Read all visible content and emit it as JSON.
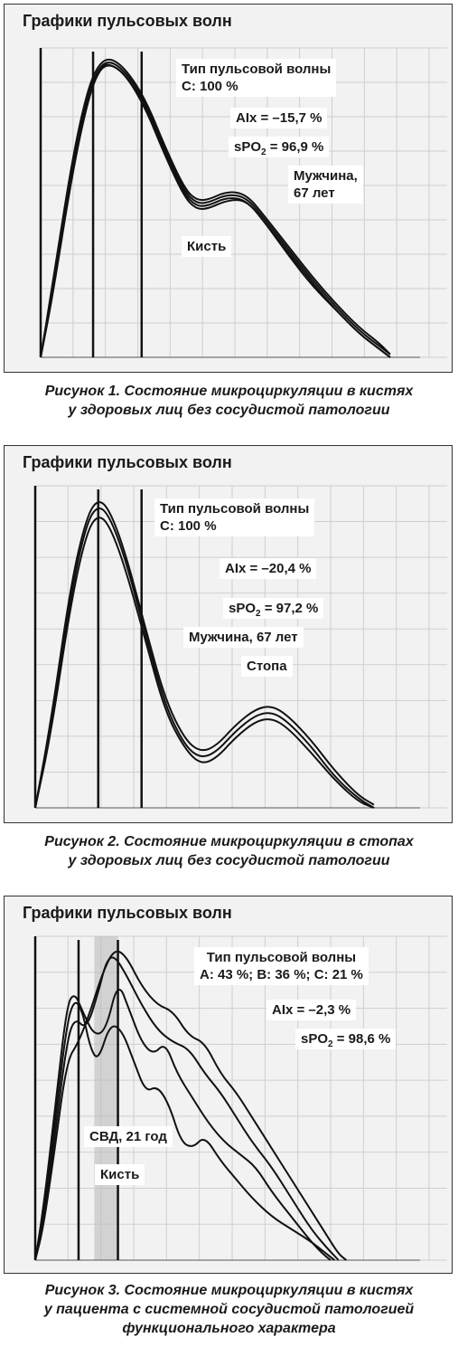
{
  "chart_data": [
    {
      "type": "line",
      "title": "Графики пульсовых волн",
      "labels": {
        "wave_type": "Тип пульсовой волны",
        "wave_type_value": "С: 100 %",
        "aix": "AIx = –15,7 %",
        "spo2_prefix": "sPO",
        "spo2_sub": "2",
        "spo2_value": " = 96,9 %",
        "subject_line1": "Мужчина,",
        "subject_line2": "67 лет",
        "site": "Кисть"
      },
      "grid": true,
      "series": [
        {
          "values": [
            [
              0,
              0
            ],
            [
              3,
              22
            ],
            [
              8,
              64
            ],
            [
              12,
              88
            ],
            [
              15,
              98
            ],
            [
              18,
              100
            ],
            [
              22,
              96
            ],
            [
              27,
              86
            ],
            [
              32,
              70
            ],
            [
              37,
              56
            ],
            [
              40,
              52
            ],
            [
              43,
              52
            ],
            [
              48,
              55
            ],
            [
              53,
              54
            ],
            [
              58,
              46
            ],
            [
              64,
              36
            ],
            [
              70,
              26
            ],
            [
              76,
              17
            ],
            [
              82,
              9
            ],
            [
              87,
              4
            ],
            [
              90,
              1
            ]
          ]
        },
        {
          "values": [
            [
              0,
              0
            ],
            [
              3,
              20
            ],
            [
              8,
              61
            ],
            [
              12,
              86
            ],
            [
              15,
              97
            ],
            [
              18,
              99
            ],
            [
              22,
              95
            ],
            [
              27,
              85
            ],
            [
              32,
              69
            ],
            [
              37,
              55
            ],
            [
              40,
              51
            ],
            [
              43,
              51
            ],
            [
              48,
              54
            ],
            [
              53,
              53
            ],
            [
              58,
              45
            ],
            [
              64,
              35
            ],
            [
              70,
              25
            ],
            [
              76,
              16
            ],
            [
              82,
              8
            ],
            [
              87,
              3
            ],
            [
              90,
              0
            ]
          ]
        },
        {
          "values": [
            [
              0,
              0
            ],
            [
              3,
              24
            ],
            [
              8,
              66
            ],
            [
              12,
              90
            ],
            [
              15,
              99
            ],
            [
              18,
              101
            ],
            [
              22,
              97
            ],
            [
              27,
              87
            ],
            [
              32,
              71
            ],
            [
              37,
              57
            ],
            [
              40,
              53
            ],
            [
              43,
              53
            ],
            [
              48,
              56
            ],
            [
              53,
              55
            ],
            [
              58,
              47
            ],
            [
              64,
              37
            ],
            [
              70,
              27
            ],
            [
              76,
              18
            ],
            [
              82,
              10
            ],
            [
              87,
              5
            ],
            [
              90,
              1
            ]
          ]
        },
        {
          "values": [
            [
              0,
              0
            ],
            [
              3,
              21
            ],
            [
              8,
              63
            ],
            [
              12,
              87
            ],
            [
              15,
              98
            ],
            [
              18,
              99
            ],
            [
              22,
              95
            ],
            [
              27,
              84
            ],
            [
              32,
              68
            ],
            [
              37,
              54
            ],
            [
              40,
              50
            ],
            [
              43,
              50
            ],
            [
              48,
              53
            ],
            [
              53,
              53
            ],
            [
              58,
              45
            ],
            [
              64,
              34
            ],
            [
              70,
              24
            ],
            [
              76,
              16
            ],
            [
              82,
              8
            ],
            [
              87,
              3
            ],
            [
              90,
              0
            ]
          ]
        }
      ],
      "markers_x": [
        13.5,
        26
      ]
    },
    {
      "type": "line",
      "title": "Графики пульсовых волн",
      "labels": {
        "wave_type": "Тип пульсовой волны",
        "wave_type_value": "С: 100 %",
        "aix": "AIx = –20,4 %",
        "spo2_prefix": "sPO",
        "spo2_sub": "2",
        "spo2_value": " = 97,2 %",
        "subject": "Мужчина, 67 лет",
        "site": "Стопа"
      },
      "grid": true,
      "series": [
        {
          "values": [
            [
              0,
              0
            ],
            [
              4,
              28
            ],
            [
              9,
              72
            ],
            [
              13,
              94
            ],
            [
              16,
              100
            ],
            [
              19,
              96
            ],
            [
              23,
              82
            ],
            [
              28,
              58
            ],
            [
              33,
              35
            ],
            [
              38,
              22
            ],
            [
              42,
              18
            ],
            [
              46,
              20
            ],
            [
              51,
              27
            ],
            [
              56,
              32
            ],
            [
              60,
              33
            ],
            [
              64,
              30
            ],
            [
              70,
              22
            ],
            [
              76,
              12
            ],
            [
              82,
              4
            ],
            [
              86,
              1
            ]
          ]
        },
        {
          "values": [
            [
              0,
              0
            ],
            [
              4,
              26
            ],
            [
              9,
              69
            ],
            [
              13,
              92
            ],
            [
              16,
              98
            ],
            [
              19,
              94
            ],
            [
              23,
              80
            ],
            [
              28,
              56
            ],
            [
              33,
              33
            ],
            [
              38,
              20
            ],
            [
              42,
              16
            ],
            [
              46,
              18
            ],
            [
              51,
              25
            ],
            [
              56,
              30
            ],
            [
              60,
              31
            ],
            [
              64,
              28
            ],
            [
              70,
              20
            ],
            [
              76,
              10
            ],
            [
              82,
              3
            ],
            [
              86,
              0
            ]
          ]
        },
        {
          "values": [
            [
              0,
              0
            ],
            [
              4,
              24
            ],
            [
              9,
              66
            ],
            [
              13,
              89
            ],
            [
              16,
              95
            ],
            [
              19,
              91
            ],
            [
              23,
              77
            ],
            [
              28,
              54
            ],
            [
              33,
              31
            ],
            [
              38,
              19
            ],
            [
              42,
              14
            ],
            [
              46,
              16
            ],
            [
              51,
              23
            ],
            [
              56,
              28
            ],
            [
              60,
              29
            ],
            [
              64,
              26
            ],
            [
              70,
              18
            ],
            [
              76,
              9
            ],
            [
              82,
              2
            ],
            [
              86,
              0
            ]
          ]
        }
      ],
      "markers_x": [
        16,
        27
      ]
    },
    {
      "type": "line",
      "title": "Графики пульсовых волн",
      "labels": {
        "wave_type": "Тип пульсовой волны",
        "wave_type_value": "А: 43 %; В: 36 %; С: 21 %",
        "aix": "AIx = –2,3 %",
        "spo2_prefix": "sPO",
        "spo2_sub": "2",
        "spo2_value": " = 98,6 %",
        "subject": "СВД, 21 год",
        "site": "Кисть"
      },
      "grid": true,
      "series": [
        {
          "values": [
            [
              0,
              0
            ],
            [
              2,
              14
            ],
            [
              5,
              44
            ],
            [
              8,
              76
            ],
            [
              10,
              84
            ],
            [
              12,
              80
            ],
            [
              14,
              68
            ],
            [
              16,
              64
            ],
            [
              19,
              76
            ],
            [
              22,
              74
            ],
            [
              25,
              64
            ],
            [
              28,
              54
            ],
            [
              31,
              56
            ],
            [
              34,
              50
            ],
            [
              37,
              38
            ],
            [
              40,
              36
            ],
            [
              43,
              40
            ],
            [
              47,
              32
            ],
            [
              51,
              26
            ],
            [
              55,
              20
            ],
            [
              60,
              14
            ],
            [
              65,
              10
            ],
            [
              70,
              6
            ],
            [
              74,
              2
            ],
            [
              76,
              0
            ]
          ]
        },
        {
          "values": [
            [
              0,
              0
            ],
            [
              2,
              16
            ],
            [
              5,
              48
            ],
            [
              8,
              82
            ],
            [
              10,
              86
            ],
            [
              12,
              80
            ],
            [
              15,
              72
            ],
            [
              18,
              74
            ],
            [
              21,
              90
            ],
            [
              24,
              80
            ],
            [
              27,
              70
            ],
            [
              30,
              66
            ],
            [
              33,
              70
            ],
            [
              36,
              60
            ],
            [
              40,
              52
            ],
            [
              44,
              44
            ],
            [
              48,
              38
            ],
            [
              52,
              34
            ],
            [
              56,
              30
            ],
            [
              60,
              22
            ],
            [
              65,
              14
            ],
            [
              70,
              6
            ],
            [
              73,
              2
            ],
            [
              75,
              0
            ]
          ]
        },
        {
          "values": [
            [
              0,
              0
            ],
            [
              2,
              12
            ],
            [
              5,
              40
            ],
            [
              8,
              70
            ],
            [
              10,
              78
            ],
            [
              13,
              74
            ],
            [
              16,
              86
            ],
            [
              18,
              96
            ],
            [
              20,
              98
            ],
            [
              23,
              92
            ],
            [
              27,
              82
            ],
            [
              31,
              74
            ],
            [
              35,
              70
            ],
            [
              39,
              68
            ],
            [
              43,
              60
            ],
            [
              47,
              54
            ],
            [
              51,
              46
            ],
            [
              55,
              38
            ],
            [
              60,
              30
            ],
            [
              65,
              20
            ],
            [
              70,
              10
            ],
            [
              74,
              4
            ],
            [
              77,
              0
            ]
          ]
        },
        {
          "values": [
            [
              0,
              0
            ],
            [
              2,
              10
            ],
            [
              5,
              36
            ],
            [
              8,
              64
            ],
            [
              11,
              70
            ],
            [
              14,
              80
            ],
            [
              17,
              92
            ],
            [
              20,
              100
            ],
            [
              23,
              98
            ],
            [
              27,
              88
            ],
            [
              31,
              82
            ],
            [
              35,
              80
            ],
            [
              39,
              72
            ],
            [
              43,
              70
            ],
            [
              47,
              60
            ],
            [
              51,
              54
            ],
            [
              55,
              46
            ],
            [
              60,
              36
            ],
            [
              65,
              26
            ],
            [
              70,
              16
            ],
            [
              74,
              8
            ],
            [
              77,
              2
            ],
            [
              79,
              0
            ]
          ]
        }
      ],
      "markers_x": [
        11,
        21
      ],
      "shaded_band_x": [
        15,
        21
      ]
    }
  ],
  "captions": [
    {
      "line1": "Рисунок 1. Состояние микроциркуляции в кистях",
      "line2": "у здоровых лиц без сосудистой патологии"
    },
    {
      "line1": "Рисунок 2. Состояние микроциркуляции в стопах",
      "line2": "у здоровых лиц без сосудистой патологии"
    },
    {
      "line1": "Рисунок 3. Состояние микроциркуляции в кистях",
      "line2": "у пациента с системной сосудистой патологией",
      "line3": "функционального характера"
    }
  ]
}
